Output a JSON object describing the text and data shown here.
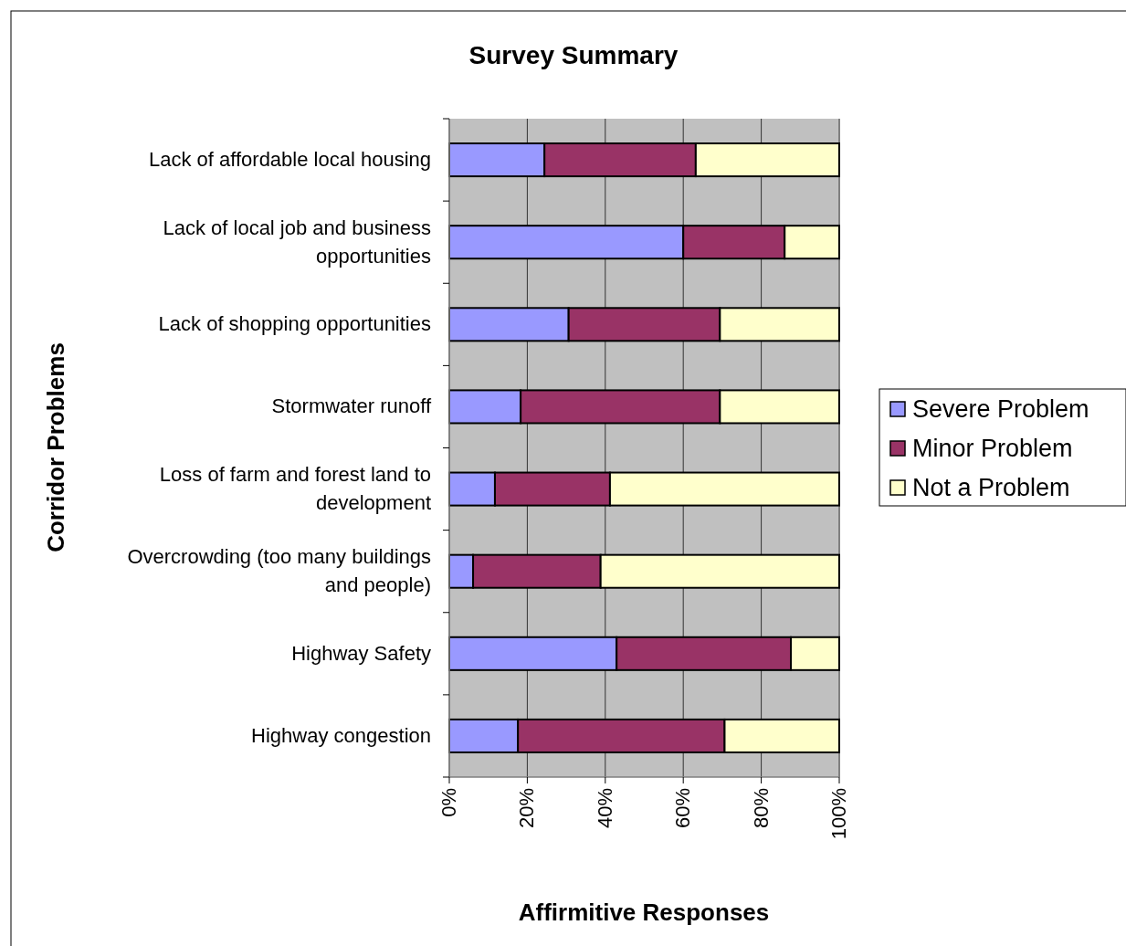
{
  "chart_data": {
    "type": "bar",
    "orientation": "horizontal",
    "stacked": true,
    "title": "Survey Summary",
    "xlabel": "Affirmitive Responses",
    "ylabel": "Corridor Problems",
    "categories": [
      "Lack of affordable local housing",
      "Lack of local job and business opportunities",
      "Lack of shopping opportunities",
      "Stormwater runoff",
      "Loss of farm and forest land to development",
      "Overcrowding (too many buildings and people)",
      "Highway Safety",
      "Highway congestion"
    ],
    "series": [
      {
        "name": "Severe Problem",
        "color": "#9999ff",
        "values": [
          24.4,
          60,
          30.6,
          18.3,
          11.7,
          6.1,
          42.9,
          17.6
        ]
      },
      {
        "name": "Minor Problem",
        "color": "#993366",
        "values": [
          38.8,
          26,
          38.8,
          51.1,
          29.5,
          32.7,
          44.7,
          53
        ]
      },
      {
        "name": "Not a Problem",
        "color": "#ffffcc",
        "values": [
          36.8,
          14,
          30.6,
          30.6,
          58.8,
          61.2,
          12.4,
          29.4
        ]
      }
    ],
    "xlim": [
      0,
      100
    ],
    "xticks": [
      {
        "value": 0,
        "label": "0%"
      },
      {
        "value": 20,
        "label": "20%"
      },
      {
        "value": 40,
        "label": "40%"
      },
      {
        "value": 60,
        "label": "60%"
      },
      {
        "value": 80,
        "label": "80%"
      },
      {
        "value": 100,
        "label": "100%"
      }
    ],
    "grid": "x",
    "legend": "right"
  }
}
